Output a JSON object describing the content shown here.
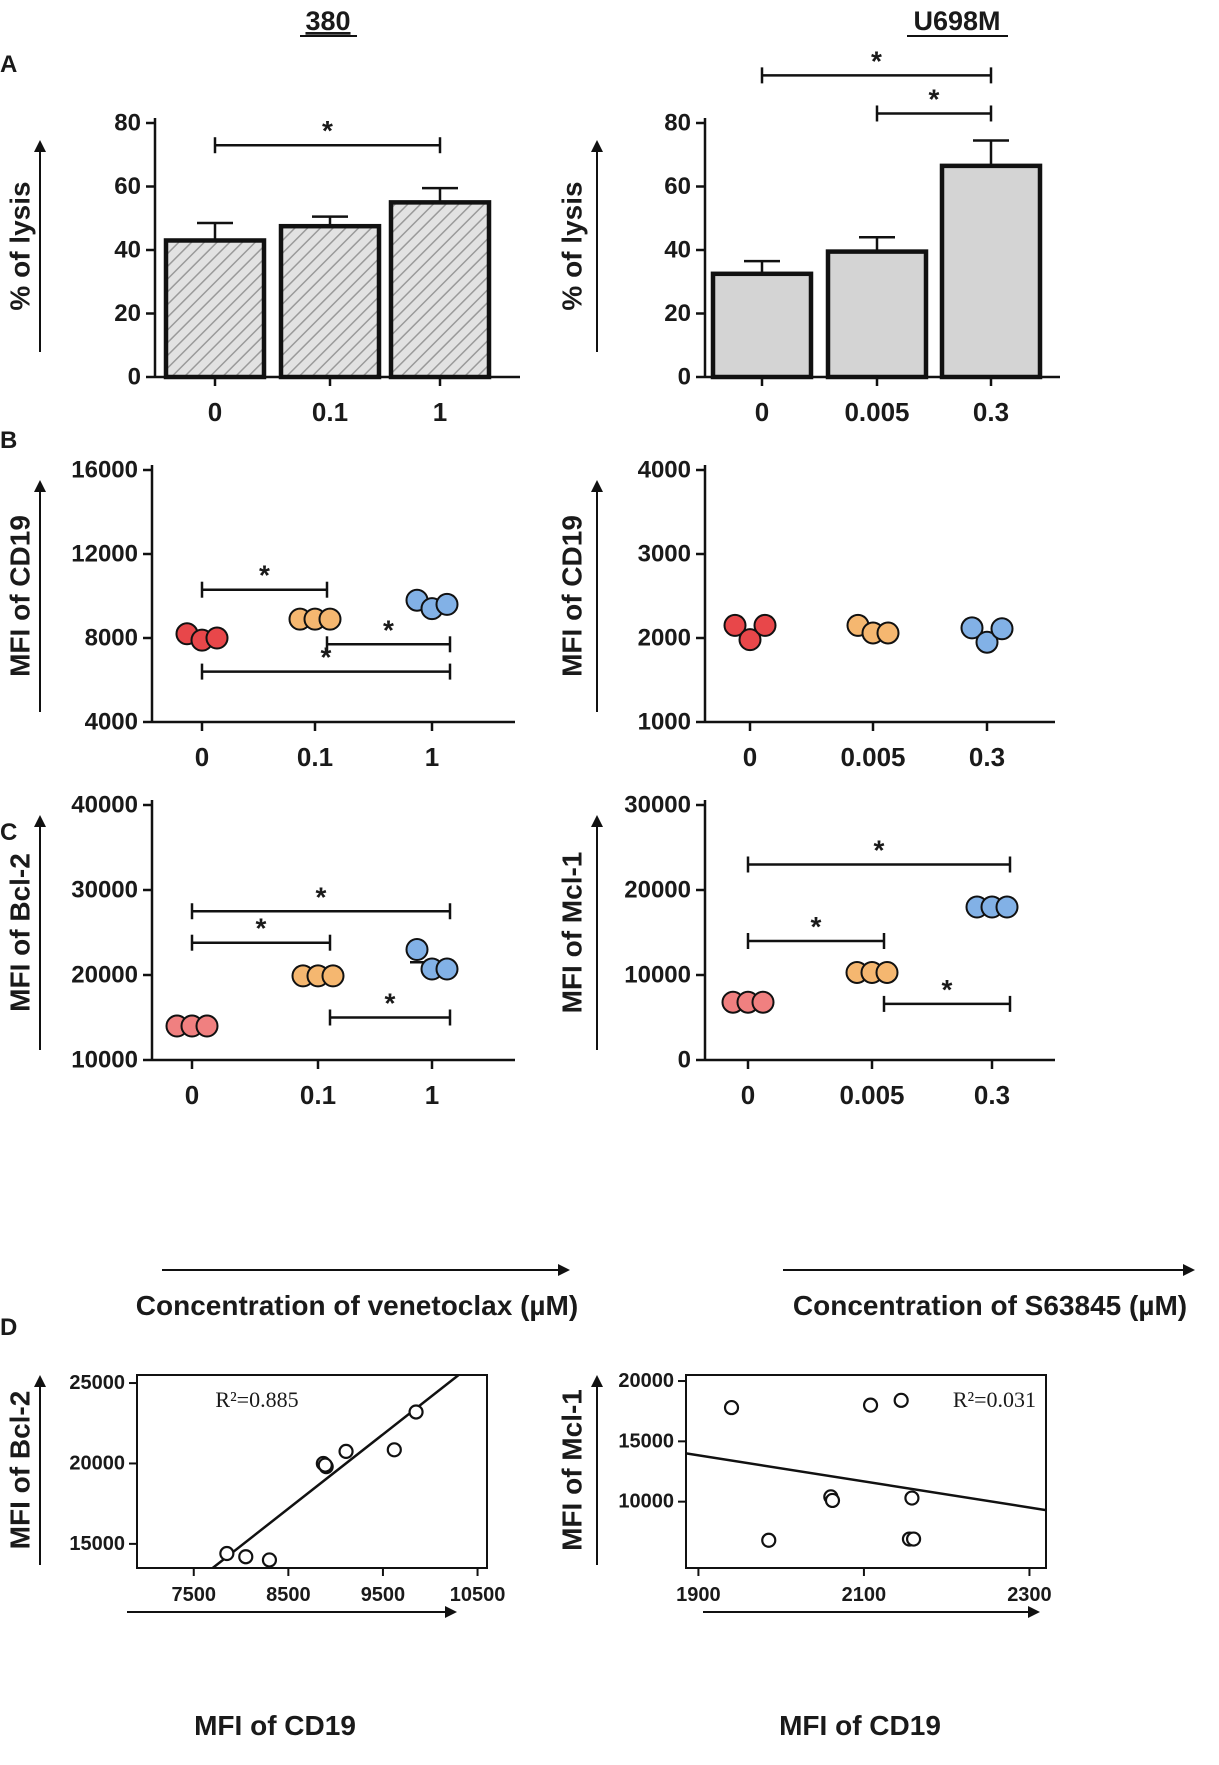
{
  "headers": {
    "left": "380",
    "right": "U698M"
  },
  "panel_letters": {
    "A": "A",
    "B": "B",
    "C": "C",
    "D": "D"
  },
  "colors": {
    "red": "#e8474a",
    "light_red": "#f08080",
    "orange": "#f5b770",
    "blue": "#82b1e6",
    "bar_gray": "#d4d4d4",
    "hatch": "#9a9a9a"
  },
  "bottom_labels": {
    "left": "Concentration of venetoclax (µM)",
    "right": "Concentration of S63845 (µM)"
  },
  "chart_data": [
    {
      "id": "A1",
      "type": "bar",
      "style": "hatched",
      "ylabel": "% of lysis",
      "ylim": [
        0,
        80
      ],
      "yticks": [
        "0",
        "20",
        "40",
        "60",
        "80"
      ],
      "categories": [
        "0",
        "0.1",
        "1"
      ],
      "values": [
        43,
        47.5,
        55
      ],
      "errors": [
        5.5,
        3,
        4.5
      ],
      "significance": [
        {
          "from": 0,
          "to": 2,
          "y": 73,
          "label": "*"
        }
      ]
    },
    {
      "id": "A2",
      "type": "bar",
      "style": "solid",
      "ylabel": "% of lysis",
      "ylim": [
        0,
        80
      ],
      "yticks": [
        "0",
        "20",
        "40",
        "60",
        "80"
      ],
      "categories": [
        "0",
        "0.005",
        "0.3"
      ],
      "values": [
        32.5,
        39.5,
        66.5
      ],
      "errors": [
        4,
        4.5,
        8
      ],
      "significance": [
        {
          "from": 0,
          "to": 2,
          "y": 95,
          "label": "*"
        },
        {
          "from": 1,
          "to": 2,
          "y": 83,
          "label": "*"
        }
      ]
    },
    {
      "id": "B1",
      "type": "scatter",
      "ylabel": "MFI of CD19",
      "ylim": [
        4000,
        16000
      ],
      "yticks": [
        "4000",
        "8000",
        "12000",
        "16000"
      ],
      "categories": [
        "0",
        "0.1",
        "1"
      ],
      "groups": [
        {
          "color": "#e8474a",
          "points": [
            8200,
            7900,
            8000
          ],
          "mean": 8030
        },
        {
          "color": "#f5b770",
          "points": [
            8900,
            8900,
            8900
          ],
          "mean": 8900
        },
        {
          "color": "#82b1e6",
          "points": [
            9800,
            9400,
            9600
          ],
          "mean": 9530
        }
      ],
      "significance": [
        {
          "from": 0,
          "to": 1,
          "y": 10300,
          "label": "*"
        },
        {
          "from": 1,
          "to": 2,
          "y": 7700,
          "label": "*"
        },
        {
          "from": 0,
          "to": 2,
          "y": 6400,
          "label": "*"
        }
      ]
    },
    {
      "id": "B2",
      "type": "scatter",
      "ylabel": "MFI of CD19",
      "ylim": [
        1000,
        4000
      ],
      "yticks": [
        "1000",
        "2000",
        "3000",
        "4000"
      ],
      "categories": [
        "0",
        "0.005",
        "0.3"
      ],
      "groups": [
        {
          "color": "#e8474a",
          "points": [
            2150,
            1980,
            2150
          ],
          "mean": 2090
        },
        {
          "color": "#f5b770",
          "points": [
            2150,
            2060,
            2060
          ],
          "mean": 2090
        },
        {
          "color": "#82b1e6",
          "points": [
            2120,
            1950,
            2110
          ],
          "mean": 2060
        }
      ],
      "significance": []
    },
    {
      "id": "C1",
      "type": "scatter",
      "ylabel": "MFI of Bcl-2",
      "ylim": [
        10000,
        40000
      ],
      "yticks": [
        "10000",
        "20000",
        "30000",
        "40000"
      ],
      "categories": [
        "0",
        "0.1",
        "1"
      ],
      "groups": [
        {
          "color": "#f08080",
          "points": [
            14000,
            14000,
            14000
          ],
          "mean": 14000
        },
        {
          "color": "#f5b770",
          "points": [
            19900,
            19900,
            19900
          ],
          "mean": 19900
        },
        {
          "color": "#82b1e6",
          "points": [
            23000,
            20700,
            20700
          ],
          "mean": 21500
        }
      ],
      "significance": [
        {
          "from": 0,
          "to": 2,
          "y": 27500,
          "label": "*"
        },
        {
          "from": 0,
          "to": 1,
          "y": 23800,
          "label": "*"
        },
        {
          "from": 1,
          "to": 2,
          "y": 15000,
          "label": "*"
        }
      ]
    },
    {
      "id": "C2",
      "type": "scatter",
      "ylabel": "MFI of Mcl-1",
      "ylim": [
        0,
        30000
      ],
      "yticks": [
        "0",
        "10000",
        "20000",
        "30000"
      ],
      "categories": [
        "0",
        "0.005",
        "0.3"
      ],
      "groups": [
        {
          "color": "#f08080",
          "points": [
            6800,
            6800,
            6800
          ],
          "mean": 6800
        },
        {
          "color": "#f5b770",
          "points": [
            10300,
            10300,
            10300
          ],
          "mean": 10300
        },
        {
          "color": "#82b1e6",
          "points": [
            18000,
            18000,
            18000
          ],
          "mean": 18000
        }
      ],
      "significance": [
        {
          "from": 0,
          "to": 2,
          "y": 23000,
          "label": "*"
        },
        {
          "from": 0,
          "to": 1,
          "y": 14000,
          "label": "*"
        },
        {
          "from": 1,
          "to": 2,
          "y": 6600,
          "label": "*"
        }
      ]
    },
    {
      "id": "D1",
      "type": "scatter",
      "style": "regression",
      "xlabel": "MFI of CD19",
      "ylabel": "MFI of Bcl-2",
      "xlim": [
        6900,
        10600
      ],
      "ylim": [
        13500,
        25500
      ],
      "xticks": [
        "7500",
        "8500",
        "9500",
        "10500"
      ],
      "yticks": [
        "15000",
        "20000",
        "25000"
      ],
      "annotation": "R²=0.885",
      "x": [
        7850,
        8050,
        8300,
        8870,
        8900,
        8890,
        9110,
        9620,
        9850
      ],
      "y": [
        14400,
        14200,
        14000,
        20000,
        19800,
        19900,
        20750,
        20850,
        23200
      ],
      "fit": {
        "x1": 7700,
        "y1": 13500,
        "x2": 10300,
        "y2": 25500
      }
    },
    {
      "id": "D2",
      "type": "scatter",
      "style": "regression",
      "xlabel": "MFI of CD19",
      "ylabel": "MFI of Mcl-1",
      "xlim": [
        1885,
        2320
      ],
      "ylim": [
        4500,
        20500
      ],
      "xticks": [
        "1900",
        "2100",
        "2300"
      ],
      "yticks": [
        "10000",
        "15000",
        "20000"
      ],
      "annotation": "R²=0.031",
      "x": [
        1940,
        1985,
        2060,
        2062,
        2108,
        2145,
        2155,
        2160,
        2158
      ],
      "y": [
        17800,
        6800,
        10400,
        10100,
        18000,
        18400,
        6900,
        6900,
        10300
      ],
      "fit": {
        "x1": 1885,
        "y1": 14000,
        "x2": 2320,
        "y2": 9300
      }
    }
  ]
}
